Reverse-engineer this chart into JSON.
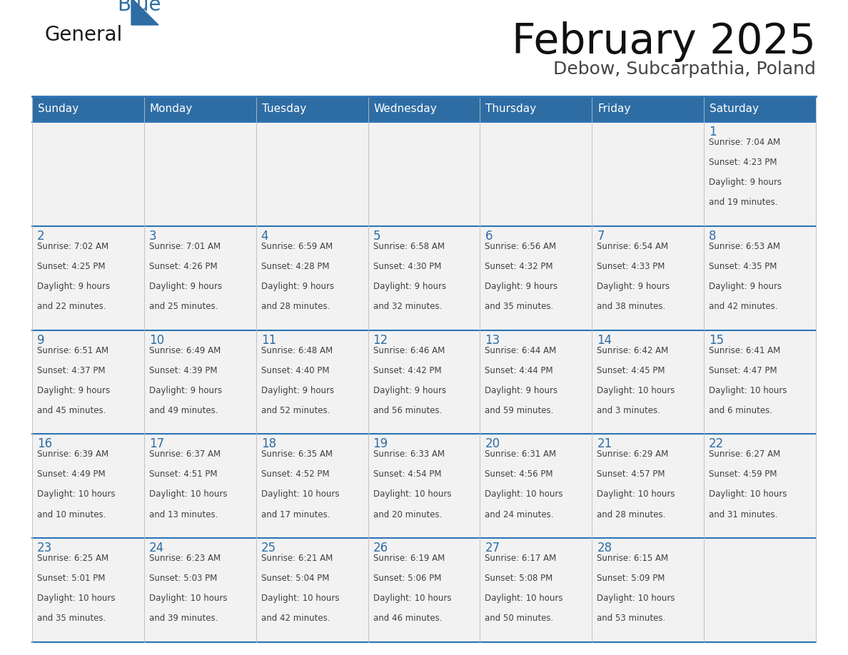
{
  "title": "February 2025",
  "subtitle": "Debow, Subcarpathia, Poland",
  "header_bg": "#2E6DA4",
  "header_text": "#FFFFFF",
  "cell_bg": "#F2F2F2",
  "border_color": "#2E75B6",
  "text_color": "#404040",
  "day_num_color": "#2E6DA4",
  "days_of_week": [
    "Sunday",
    "Monday",
    "Tuesday",
    "Wednesday",
    "Thursday",
    "Friday",
    "Saturday"
  ],
  "calendar_data": [
    [
      null,
      null,
      null,
      null,
      null,
      null,
      {
        "day": "1",
        "sunrise": "7:04 AM",
        "sunset": "4:23 PM",
        "daylight_line1": "Daylight: 9 hours",
        "daylight_line2": "and 19 minutes."
      }
    ],
    [
      {
        "day": "2",
        "sunrise": "7:02 AM",
        "sunset": "4:25 PM",
        "daylight_line1": "Daylight: 9 hours",
        "daylight_line2": "and 22 minutes."
      },
      {
        "day": "3",
        "sunrise": "7:01 AM",
        "sunset": "4:26 PM",
        "daylight_line1": "Daylight: 9 hours",
        "daylight_line2": "and 25 minutes."
      },
      {
        "day": "4",
        "sunrise": "6:59 AM",
        "sunset": "4:28 PM",
        "daylight_line1": "Daylight: 9 hours",
        "daylight_line2": "and 28 minutes."
      },
      {
        "day": "5",
        "sunrise": "6:58 AM",
        "sunset": "4:30 PM",
        "daylight_line1": "Daylight: 9 hours",
        "daylight_line2": "and 32 minutes."
      },
      {
        "day": "6",
        "sunrise": "6:56 AM",
        "sunset": "4:32 PM",
        "daylight_line1": "Daylight: 9 hours",
        "daylight_line2": "and 35 minutes."
      },
      {
        "day": "7",
        "sunrise": "6:54 AM",
        "sunset": "4:33 PM",
        "daylight_line1": "Daylight: 9 hours",
        "daylight_line2": "and 38 minutes."
      },
      {
        "day": "8",
        "sunrise": "6:53 AM",
        "sunset": "4:35 PM",
        "daylight_line1": "Daylight: 9 hours",
        "daylight_line2": "and 42 minutes."
      }
    ],
    [
      {
        "day": "9",
        "sunrise": "6:51 AM",
        "sunset": "4:37 PM",
        "daylight_line1": "Daylight: 9 hours",
        "daylight_line2": "and 45 minutes."
      },
      {
        "day": "10",
        "sunrise": "6:49 AM",
        "sunset": "4:39 PM",
        "daylight_line1": "Daylight: 9 hours",
        "daylight_line2": "and 49 minutes."
      },
      {
        "day": "11",
        "sunrise": "6:48 AM",
        "sunset": "4:40 PM",
        "daylight_line1": "Daylight: 9 hours",
        "daylight_line2": "and 52 minutes."
      },
      {
        "day": "12",
        "sunrise": "6:46 AM",
        "sunset": "4:42 PM",
        "daylight_line1": "Daylight: 9 hours",
        "daylight_line2": "and 56 minutes."
      },
      {
        "day": "13",
        "sunrise": "6:44 AM",
        "sunset": "4:44 PM",
        "daylight_line1": "Daylight: 9 hours",
        "daylight_line2": "and 59 minutes."
      },
      {
        "day": "14",
        "sunrise": "6:42 AM",
        "sunset": "4:45 PM",
        "daylight_line1": "Daylight: 10 hours",
        "daylight_line2": "and 3 minutes."
      },
      {
        "day": "15",
        "sunrise": "6:41 AM",
        "sunset": "4:47 PM",
        "daylight_line1": "Daylight: 10 hours",
        "daylight_line2": "and 6 minutes."
      }
    ],
    [
      {
        "day": "16",
        "sunrise": "6:39 AM",
        "sunset": "4:49 PM",
        "daylight_line1": "Daylight: 10 hours",
        "daylight_line2": "and 10 minutes."
      },
      {
        "day": "17",
        "sunrise": "6:37 AM",
        "sunset": "4:51 PM",
        "daylight_line1": "Daylight: 10 hours",
        "daylight_line2": "and 13 minutes."
      },
      {
        "day": "18",
        "sunrise": "6:35 AM",
        "sunset": "4:52 PM",
        "daylight_line1": "Daylight: 10 hours",
        "daylight_line2": "and 17 minutes."
      },
      {
        "day": "19",
        "sunrise": "6:33 AM",
        "sunset": "4:54 PM",
        "daylight_line1": "Daylight: 10 hours",
        "daylight_line2": "and 20 minutes."
      },
      {
        "day": "20",
        "sunrise": "6:31 AM",
        "sunset": "4:56 PM",
        "daylight_line1": "Daylight: 10 hours",
        "daylight_line2": "and 24 minutes."
      },
      {
        "day": "21",
        "sunrise": "6:29 AM",
        "sunset": "4:57 PM",
        "daylight_line1": "Daylight: 10 hours",
        "daylight_line2": "and 28 minutes."
      },
      {
        "day": "22",
        "sunrise": "6:27 AM",
        "sunset": "4:59 PM",
        "daylight_line1": "Daylight: 10 hours",
        "daylight_line2": "and 31 minutes."
      }
    ],
    [
      {
        "day": "23",
        "sunrise": "6:25 AM",
        "sunset": "5:01 PM",
        "daylight_line1": "Daylight: 10 hours",
        "daylight_line2": "and 35 minutes."
      },
      {
        "day": "24",
        "sunrise": "6:23 AM",
        "sunset": "5:03 PM",
        "daylight_line1": "Daylight: 10 hours",
        "daylight_line2": "and 39 minutes."
      },
      {
        "day": "25",
        "sunrise": "6:21 AM",
        "sunset": "5:04 PM",
        "daylight_line1": "Daylight: 10 hours",
        "daylight_line2": "and 42 minutes."
      },
      {
        "day": "26",
        "sunrise": "6:19 AM",
        "sunset": "5:06 PM",
        "daylight_line1": "Daylight: 10 hours",
        "daylight_line2": "and 46 minutes."
      },
      {
        "day": "27",
        "sunrise": "6:17 AM",
        "sunset": "5:08 PM",
        "daylight_line1": "Daylight: 10 hours",
        "daylight_line2": "and 50 minutes."
      },
      {
        "day": "28",
        "sunrise": "6:15 AM",
        "sunset": "5:09 PM",
        "daylight_line1": "Daylight: 10 hours",
        "daylight_line2": "and 53 minutes."
      },
      null
    ]
  ]
}
